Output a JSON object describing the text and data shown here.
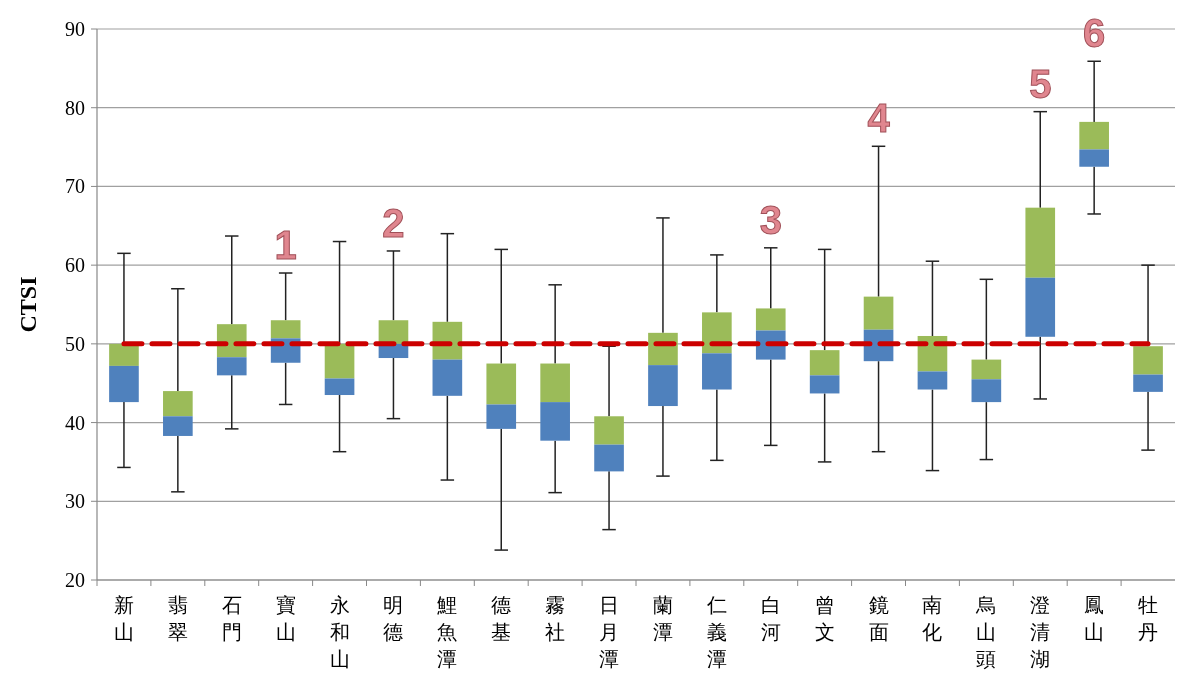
{
  "chart_data": {
    "type": "box",
    "ylabel": "CTSI",
    "categories": [
      "新山",
      "翡翠",
      "石門",
      "寶山",
      "永和山",
      "明德",
      "鯉魚潭",
      "德基",
      "霧社",
      "日月潭",
      "蘭潭",
      "仁義潭",
      "白河",
      "曾文",
      "鏡面",
      "南化",
      "烏山頭",
      "澄清湖",
      "鳳山",
      "牡丹"
    ],
    "series": [
      {
        "color": "#9bbb59",
        "colors": [
          "#4f81bd",
          "#4f81bd",
          "#4f81bd",
          "#4f81bd",
          "#4f81bd",
          "#4f81bd",
          "#4f81bd",
          "#4f81bd",
          "#4f81bd",
          "#4f81bd",
          "#4f81bd",
          "#4f81bd",
          "#4f81bd",
          "#4f81bd",
          "#4f81bd",
          "#4f81bd",
          "#4f81bd",
          "#4f81bd",
          "#4f81bd",
          "#4f81bd"
        ],
        "value_labels": [
          null,
          null,
          null,
          "1",
          null,
          "2",
          null,
          null,
          null,
          null,
          null,
          null,
          "3",
          null,
          "4",
          null,
          null,
          "5",
          "6",
          null
        ],
        "boxes": [
          {
            "low": 34.3,
            "q1": 42.6,
            "median": 47.2,
            "q3": 50,
            "high": 61.5
          },
          {
            "low": 31.2,
            "q1": 38.3,
            "median": 40.8,
            "q3": 44,
            "high": 57
          },
          {
            "low": 39.2,
            "q1": 46,
            "median": 48.3,
            "q3": 52.5,
            "high": 63.7
          },
          {
            "low": 42.3,
            "q1": 47.6,
            "median": 50.7,
            "q3": 53,
            "high": 59
          },
          {
            "low": 36.3,
            "q1": 43.5,
            "median": 45.6,
            "q3": 50,
            "high": 63
          },
          {
            "low": 40.5,
            "q1": 48.2,
            "median": 50,
            "q3": 53,
            "high": 61.8
          },
          {
            "low": 32.7,
            "q1": 43.4,
            "median": 48,
            "q3": 52.8,
            "high": 64
          },
          {
            "low": 23.8,
            "q1": 39.2,
            "median": 42.3,
            "q3": 47.5,
            "high": 62
          },
          {
            "low": 31.1,
            "q1": 37.7,
            "median": 42.6,
            "q3": 47.5,
            "high": 57.5
          },
          {
            "low": 26.4,
            "q1": 33.8,
            "median": 37.2,
            "q3": 40.8,
            "high": 49.7
          },
          {
            "low": 33.2,
            "q1": 42.1,
            "median": 47.3,
            "q3": 51.4,
            "high": 66
          },
          {
            "low": 35.2,
            "q1": 44.2,
            "median": 48.8,
            "q3": 54,
            "high": 61.3
          },
          {
            "low": 37.1,
            "q1": 48,
            "median": 51.7,
            "q3": 54.5,
            "high": 62.2
          },
          {
            "low": 35,
            "q1": 43.7,
            "median": 46,
            "q3": 49.2,
            "high": 62
          },
          {
            "low": 36.3,
            "q1": 47.8,
            "median": 51.8,
            "q3": 56,
            "high": 75.1
          },
          {
            "low": 33.9,
            "q1": 44.2,
            "median": 46.5,
            "q3": 51,
            "high": 60.5
          },
          {
            "low": 35.3,
            "q1": 42.6,
            "median": 45.5,
            "q3": 48,
            "high": 58.2
          },
          {
            "low": 43,
            "q1": 50.9,
            "median": 58.4,
            "q3": 67.3,
            "high": 79.5
          },
          {
            "low": 66.5,
            "q1": 72.5,
            "median": 74.7,
            "q3": 78.2,
            "high": 85.9
          },
          {
            "low": 36.5,
            "q1": 43.9,
            "median": 46.1,
            "q3": 49.7,
            "high": 60
          }
        ]
      }
    ],
    "ylim": [
      20,
      90
    ],
    "yticks": [
      20,
      30,
      40,
      50,
      60,
      70,
      80,
      90
    ],
    "grid": "y",
    "ref_lines": [
      {
        "axis": "y",
        "value": 50,
        "color": "#cc0000",
        "line_style": "dashed"
      }
    ]
  }
}
